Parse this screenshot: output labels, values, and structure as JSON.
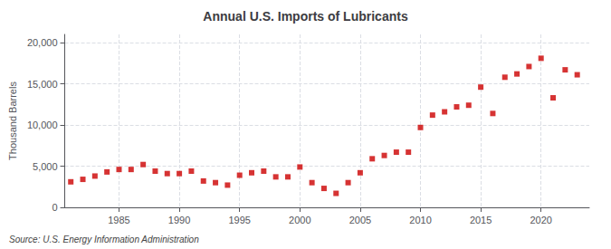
{
  "chart_data": {
    "type": "scatter",
    "title": "Annual U.S. Imports of Lubricants",
    "ylabel": "Thousand Barrels",
    "source": "Source: U.S. Energy Information Administration",
    "x": [
      1981,
      1982,
      1983,
      1984,
      1985,
      1986,
      1987,
      1988,
      1989,
      1990,
      1991,
      1992,
      1993,
      1994,
      1995,
      1996,
      1997,
      1998,
      1999,
      2000,
      2001,
      2002,
      2003,
      2004,
      2005,
      2006,
      2007,
      2008,
      2009,
      2010,
      2011,
      2012,
      2013,
      2014,
      2015,
      2016,
      2017,
      2018,
      2019,
      2020,
      2021,
      2022,
      2023
    ],
    "values": [
      3100,
      3400,
      3800,
      4300,
      4600,
      4600,
      5200,
      4400,
      4100,
      4100,
      4400,
      3200,
      3000,
      2700,
      3900,
      4200,
      4400,
      3700,
      3700,
      4900,
      3000,
      2300,
      1700,
      3000,
      4200,
      5900,
      6300,
      6700,
      6700,
      9700,
      11200,
      11600,
      12200,
      12400,
      14600,
      11400,
      15800,
      16200,
      17100,
      18100,
      13300,
      16700,
      16100
    ],
    "color": "#cc0000",
    "marker": "square",
    "grid": true,
    "xlim": [
      1980.5,
      2024
    ],
    "xticks": [
      1985,
      1990,
      1995,
      2000,
      2005,
      2010,
      2015,
      2020
    ],
    "ylim": [
      0,
      21000
    ],
    "yticks": [
      0,
      {
        "value": 5000,
        "label": "5,000"
      },
      {
        "value": 10000,
        "label": "10,000"
      },
      {
        "value": 15000,
        "label": "15,000"
      },
      {
        "value": 20000,
        "label": "20,000"
      }
    ]
  }
}
